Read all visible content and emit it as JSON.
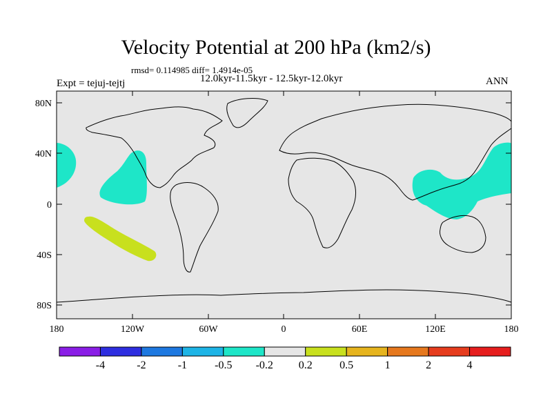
{
  "map": {
    "title": "Velocity Potential at 200 hPa (km2/s)",
    "stats": "rmsd= 0.114985 diff= 1.4914e-05",
    "period": "12.0kyr-11.5kyr - 12.5kyr-12.0kyr",
    "experiment": "Expt = tejuj-tejtj",
    "season": "ANN",
    "projection": "cylindrical equidistant",
    "background_color": "#e6e6e6",
    "lat_ticks": [
      "80N",
      "40N",
      "0",
      "40S",
      "80S"
    ],
    "lon_ticks": [
      "180",
      "120W",
      "60W",
      "0",
      "60E",
      "120E",
      "180"
    ]
  },
  "colorbar": {
    "labels": [
      "-4",
      "-2",
      "-1",
      "-0.5",
      "-0.2",
      "0.2",
      "0.5",
      "1",
      "2",
      "4"
    ],
    "colors": [
      "#8a1ee6",
      "#2e2ee0",
      "#1e78e0",
      "#1eb4e6",
      "#1ee6c8",
      "#e6e6e6",
      "#c8e01e",
      "#e6b41e",
      "#e6781e",
      "#e63c1e",
      "#e61e1e"
    ]
  },
  "features": {
    "anomaly_color_neg": "#1ee6c8",
    "anomaly_color_pos": "#c8e01e"
  }
}
